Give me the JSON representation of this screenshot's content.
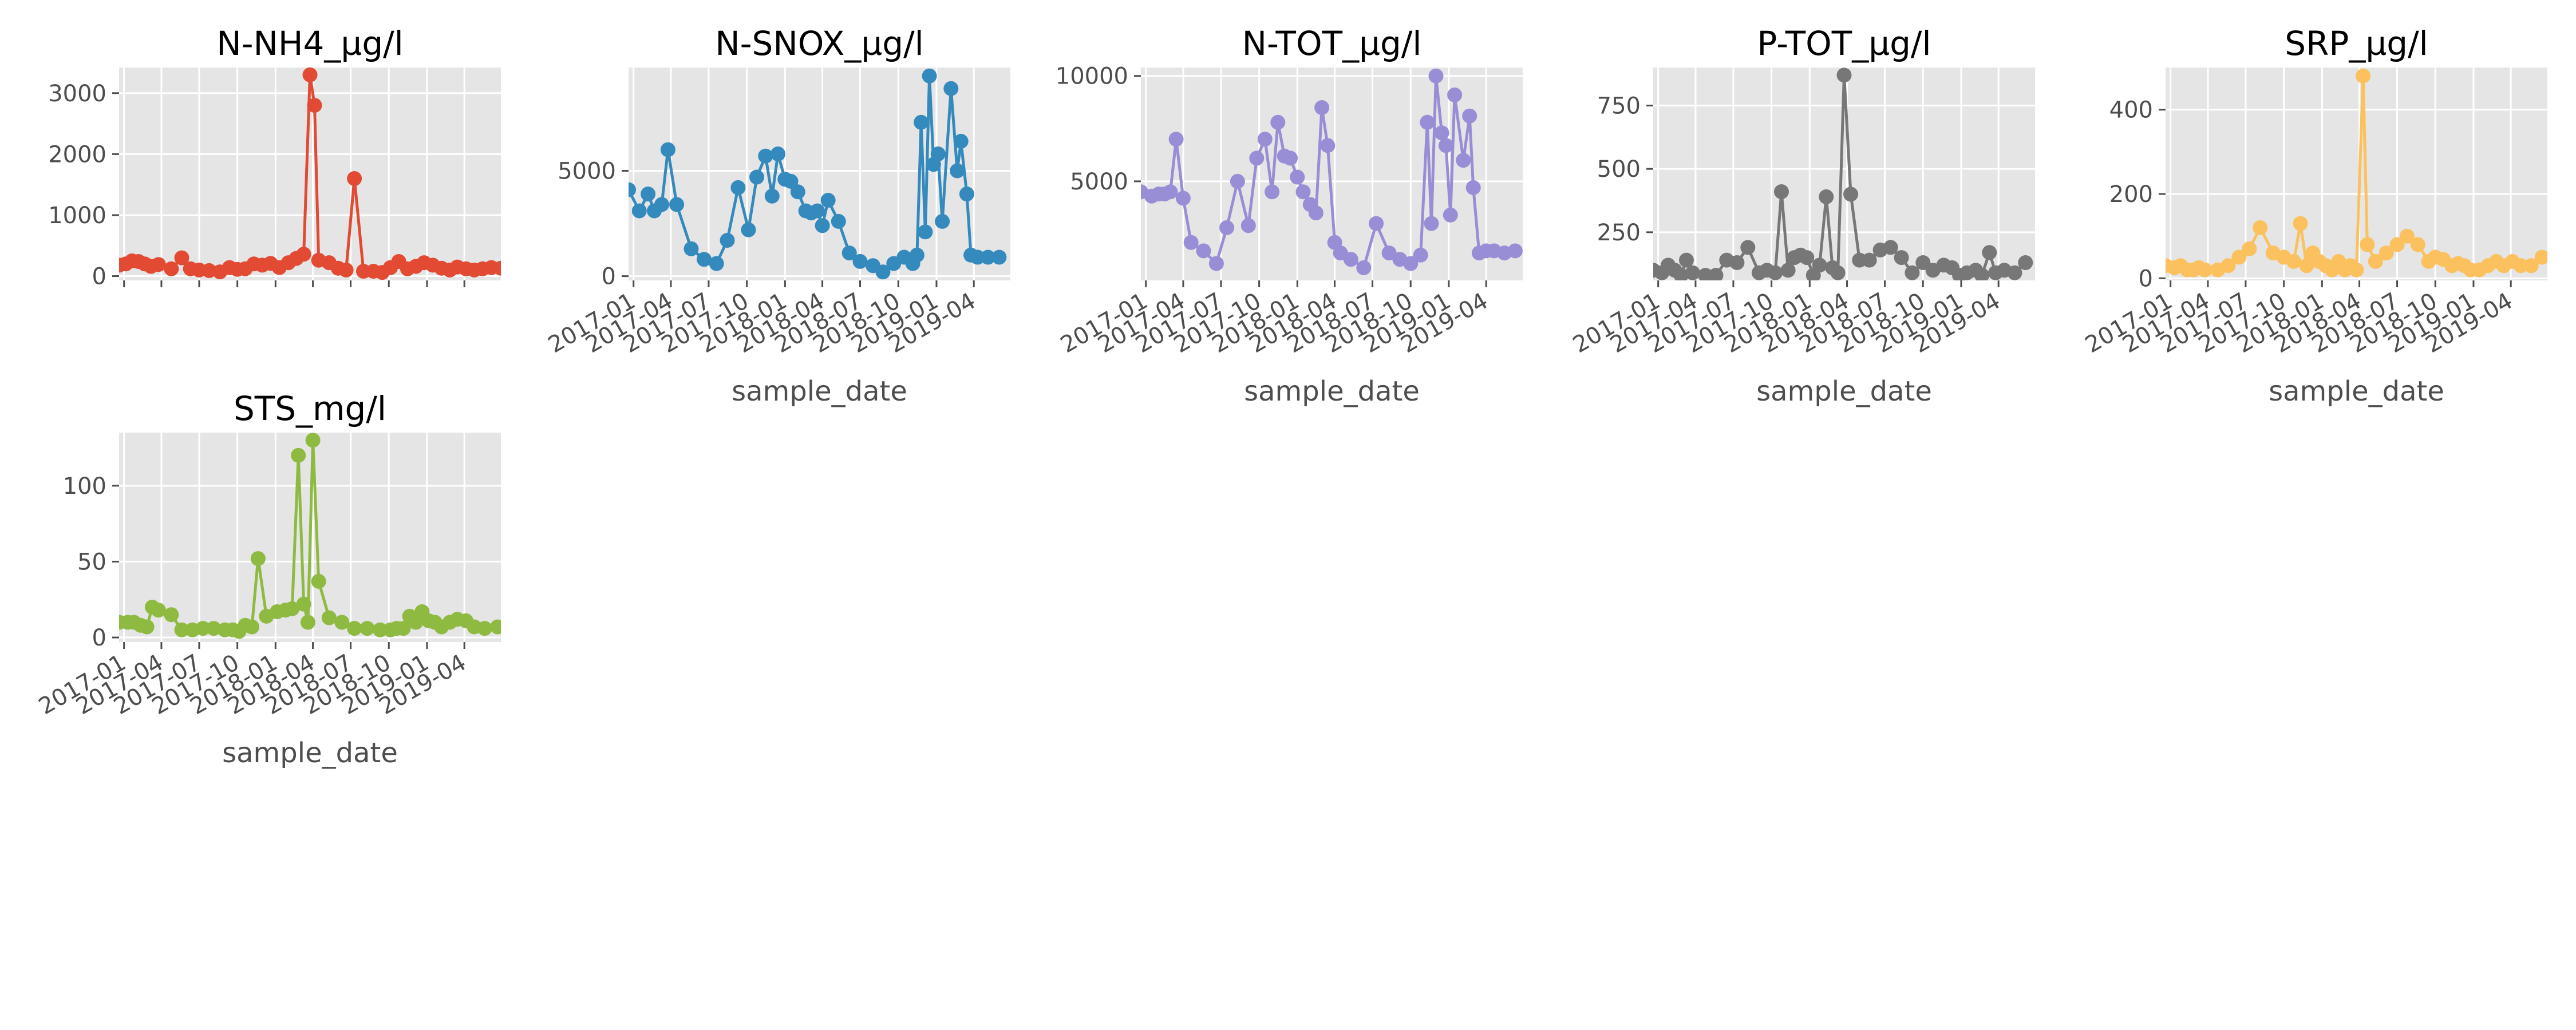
{
  "figure": {
    "style": "ggplot",
    "background": "#ffffff",
    "panel_color": "#e5e5e5",
    "grid_color": "#ffffff",
    "tick_label_color": "#4d4d4d"
  },
  "chart_data": [
    {
      "type": "line",
      "title": "N-NH4_µg/l",
      "xlabel": "",
      "ylabel": "",
      "color": "#e24a33",
      "grid": true,
      "show_xticklabels": false,
      "xlim": [
        "2016-12-20",
        "2019-06-28"
      ],
      "ylim": [
        -70,
        3420
      ],
      "yticks": [
        0,
        1000,
        2000,
        3000
      ],
      "ytick_labels": [
        "0",
        "1000",
        "2000",
        "3000"
      ],
      "xticks": [
        "2017-01-01",
        "2017-04-01",
        "2017-07-01",
        "2017-10-01",
        "2018-01-01",
        "2018-04-01",
        "2018-07-01",
        "2018-10-01",
        "2019-01-01",
        "2019-04-01"
      ],
      "xtick_labels": [],
      "x": [
        "2016-12-20",
        "2017-01-05",
        "2017-01-20",
        "2017-02-05",
        "2017-02-20",
        "2017-03-07",
        "2017-03-25",
        "2017-04-25",
        "2017-05-20",
        "2017-06-10",
        "2017-07-01",
        "2017-07-25",
        "2017-08-20",
        "2017-09-12",
        "2017-10-01",
        "2017-10-20",
        "2017-11-10",
        "2017-11-30",
        "2017-12-20",
        "2018-01-10",
        "2018-02-01",
        "2018-02-20",
        "2018-03-10",
        "2018-03-25",
        "2018-04-05",
        "2018-04-15",
        "2018-05-10",
        "2018-06-01",
        "2018-06-20",
        "2018-07-10",
        "2018-08-01",
        "2018-08-25",
        "2018-09-15",
        "2018-10-05",
        "2018-10-25",
        "2018-11-15",
        "2018-12-05",
        "2018-12-25",
        "2019-01-15",
        "2019-02-05",
        "2019-02-25",
        "2019-03-15",
        "2019-04-05",
        "2019-04-25",
        "2019-05-15",
        "2019-06-05",
        "2019-06-28"
      ],
      "series": [
        {
          "values": [
            180,
            200,
            250,
            240,
            200,
            160,
            190,
            120,
            300,
            120,
            100,
            90,
            70,
            140,
            110,
            120,
            200,
            180,
            210,
            140,
            220,
            290,
            360,
            3300,
            2800,
            260,
            220,
            130,
            100,
            1600,
            80,
            80,
            60,
            140,
            240,
            120,
            160,
            220,
            180,
            130,
            100,
            150,
            120,
            100,
            120,
            140,
            130
          ]
        }
      ]
    },
    {
      "type": "line",
      "title": "N-SNOX_µg/l",
      "xlabel": "sample_date",
      "ylabel": "",
      "color": "#348abd",
      "grid": true,
      "show_xticklabels": true,
      "xlim": [
        "2016-12-20",
        "2019-06-28"
      ],
      "ylim": [
        -200,
        9900
      ],
      "yticks": [
        0,
        5000
      ],
      "ytick_labels": [
        "0",
        "5000"
      ],
      "xticks": [
        "2017-01-01",
        "2017-04-01",
        "2017-07-01",
        "2017-10-01",
        "2018-01-01",
        "2018-04-01",
        "2018-07-01",
        "2018-10-01",
        "2019-01-01",
        "2019-04-01"
      ],
      "xtick_labels": [
        "2017-01",
        "2017-04",
        "2017-07",
        "2017-10",
        "2018-01",
        "2018-04",
        "2018-07",
        "2018-10",
        "2019-01",
        "2019-04"
      ],
      "x": [
        "2016-12-20",
        "2017-01-15",
        "2017-02-05",
        "2017-02-20",
        "2017-03-10",
        "2017-03-25",
        "2017-04-15",
        "2017-05-20",
        "2017-06-20",
        "2017-07-20",
        "2017-08-15",
        "2017-09-10",
        "2017-10-05",
        "2017-10-25",
        "2017-11-15",
        "2017-12-01",
        "2017-12-15",
        "2018-01-01",
        "2018-01-15",
        "2018-02-01",
        "2018-02-20",
        "2018-03-05",
        "2018-03-20",
        "2018-04-01",
        "2018-04-15",
        "2018-05-10",
        "2018-06-05",
        "2018-07-01",
        "2018-08-01",
        "2018-08-25",
        "2018-09-20",
        "2018-10-15",
        "2018-11-05",
        "2018-11-15",
        "2018-11-25",
        "2018-12-05",
        "2018-12-15",
        "2018-12-25",
        "2019-01-05",
        "2019-01-15",
        "2019-02-05",
        "2019-02-20",
        "2019-03-01",
        "2019-03-15",
        "2019-03-25",
        "2019-04-10",
        "2019-05-05",
        "2019-06-01"
      ],
      "series": [
        {
          "values": [
            4100,
            3100,
            3900,
            3100,
            3400,
            6000,
            3400,
            1300,
            800,
            600,
            1700,
            4200,
            2200,
            4700,
            5700,
            3800,
            5800,
            4600,
            4500,
            4000,
            3100,
            3000,
            3100,
            2400,
            3600,
            2600,
            1100,
            700,
            500,
            200,
            600,
            900,
            600,
            1000,
            7300,
            2100,
            9500,
            5300,
            5800,
            2600,
            8900,
            5000,
            6400,
            3900,
            1000,
            900,
            900,
            900
          ]
        }
      ]
    },
    {
      "type": "line",
      "title": "N-TOT_µg/l",
      "xlabel": "sample_date",
      "ylabel": "",
      "color": "#988ed5",
      "grid": true,
      "show_xticklabels": true,
      "xlim": [
        "2016-12-20",
        "2019-06-28"
      ],
      "ylim": [
        300,
        10400
      ],
      "yticks": [
        5000,
        10000
      ],
      "ytick_labels": [
        "5000",
        "10000"
      ],
      "xticks": [
        "2017-01-01",
        "2017-04-01",
        "2017-07-01",
        "2017-10-01",
        "2018-01-01",
        "2018-04-01",
        "2018-07-01",
        "2018-10-01",
        "2019-01-01",
        "2019-04-01"
      ],
      "xtick_labels": [
        "2017-01",
        "2017-04",
        "2017-07",
        "2017-10",
        "2018-01",
        "2018-04",
        "2018-07",
        "2018-10",
        "2019-01",
        "2019-04"
      ],
      "x": [
        "2016-12-20",
        "2017-01-15",
        "2017-02-01",
        "2017-02-15",
        "2017-03-01",
        "2017-03-15",
        "2017-04-01",
        "2017-04-20",
        "2017-05-20",
        "2017-06-20",
        "2017-07-15",
        "2017-08-10",
        "2017-09-05",
        "2017-09-25",
        "2017-10-15",
        "2017-11-01",
        "2017-11-15",
        "2017-12-01",
        "2017-12-15",
        "2018-01-01",
        "2018-01-15",
        "2018-02-01",
        "2018-02-15",
        "2018-03-01",
        "2018-03-15",
        "2018-04-01",
        "2018-04-15",
        "2018-05-10",
        "2018-06-10",
        "2018-07-10",
        "2018-08-10",
        "2018-09-05",
        "2018-10-01",
        "2018-10-25",
        "2018-11-10",
        "2018-11-20",
        "2018-12-01",
        "2018-12-15",
        "2018-12-25",
        "2019-01-05",
        "2019-01-15",
        "2019-02-05",
        "2019-02-20",
        "2019-03-01",
        "2019-03-15",
        "2019-04-01",
        "2019-04-20",
        "2019-05-15",
        "2019-06-10"
      ],
      "series": [
        {
          "values": [
            4500,
            4300,
            4400,
            4400,
            4500,
            7000,
            4200,
            2100,
            1700,
            1100,
            2800,
            5000,
            2900,
            6100,
            7000,
            4500,
            7800,
            6200,
            6100,
            5200,
            4500,
            3900,
            3500,
            8500,
            6700,
            2100,
            1600,
            1300,
            900,
            3000,
            1600,
            1300,
            1100,
            1500,
            7800,
            3000,
            10000,
            7300,
            6700,
            3400,
            9100,
            6000,
            8100,
            4700,
            1600,
            1700,
            1700,
            1600,
            1700
          ]
        }
      ]
    },
    {
      "type": "line",
      "title": "P-TOT_µg/l",
      "xlabel": "sample_date",
      "ylabel": "",
      "color": "#777777",
      "grid": true,
      "show_xticklabels": true,
      "xlim": [
        "2016-12-20",
        "2019-06-28"
      ],
      "ylim": [
        60,
        900
      ],
      "yticks": [
        250,
        500,
        750
      ],
      "ytick_labels": [
        "250",
        "500",
        "750"
      ],
      "xticks": [
        "2017-01-01",
        "2017-04-01",
        "2017-07-01",
        "2017-10-01",
        "2018-01-01",
        "2018-04-01",
        "2018-07-01",
        "2018-10-01",
        "2019-01-01",
        "2019-04-01"
      ],
      "xtick_labels": [
        "2017-01",
        "2017-04",
        "2017-07",
        "2017-10",
        "2018-01",
        "2018-04",
        "2018-07",
        "2018-10",
        "2019-01",
        "2019-04"
      ],
      "x": [
        "2016-12-20",
        "2017-01-10",
        "2017-01-25",
        "2017-02-10",
        "2017-02-25",
        "2017-03-10",
        "2017-03-25",
        "2017-04-25",
        "2017-05-20",
        "2017-06-15",
        "2017-07-10",
        "2017-08-05",
        "2017-09-01",
        "2017-09-20",
        "2017-10-10",
        "2017-10-25",
        "2017-11-10",
        "2017-11-25",
        "2017-12-10",
        "2017-12-25",
        "2018-01-10",
        "2018-01-25",
        "2018-02-10",
        "2018-02-25",
        "2018-03-10",
        "2018-03-25",
        "2018-04-10",
        "2018-05-01",
        "2018-05-25",
        "2018-06-20",
        "2018-07-15",
        "2018-08-10",
        "2018-09-05",
        "2018-10-01",
        "2018-10-25",
        "2018-11-20",
        "2018-12-10",
        "2018-12-28",
        "2019-01-15",
        "2019-02-05",
        "2019-02-20",
        "2019-03-10",
        "2019-03-25",
        "2019-04-15",
        "2019-05-10",
        "2019-06-05"
      ],
      "series": [
        {
          "values": [
            100,
            90,
            120,
            100,
            80,
            140,
            90,
            80,
            80,
            140,
            130,
            190,
            90,
            100,
            90,
            410,
            100,
            150,
            160,
            150,
            80,
            120,
            390,
            110,
            90,
            870,
            400,
            140,
            140,
            180,
            190,
            150,
            90,
            130,
            100,
            120,
            110,
            80,
            90,
            100,
            80,
            170,
            90,
            100,
            90,
            130
          ]
        }
      ]
    },
    {
      "type": "line",
      "title": "SRP_µg/l",
      "xlabel": "sample_date",
      "ylabel": "",
      "color": "#fbc15e",
      "grid": true,
      "show_xticklabels": true,
      "xlim": [
        "2016-12-20",
        "2019-06-28"
      ],
      "ylim": [
        -5,
        500
      ],
      "yticks": [
        0,
        200,
        400
      ],
      "ytick_labels": [
        "0",
        "200",
        "400"
      ],
      "xticks": [
        "2017-01-01",
        "2017-04-01",
        "2017-07-01",
        "2017-10-01",
        "2018-01-01",
        "2018-04-01",
        "2018-07-01",
        "2018-10-01",
        "2019-01-01",
        "2019-04-01"
      ],
      "xtick_labels": [
        "2017-01",
        "2017-04",
        "2017-07",
        "2017-10",
        "2018-01",
        "2018-04",
        "2018-07",
        "2018-10",
        "2019-01",
        "2019-04"
      ],
      "x": [
        "2016-12-20",
        "2017-01-10",
        "2017-01-25",
        "2017-02-10",
        "2017-02-25",
        "2017-03-10",
        "2017-03-25",
        "2017-04-25",
        "2017-05-20",
        "2017-06-15",
        "2017-07-10",
        "2017-08-05",
        "2017-09-05",
        "2017-10-01",
        "2017-10-25",
        "2017-11-10",
        "2017-11-25",
        "2017-12-10",
        "2017-12-25",
        "2018-01-10",
        "2018-01-25",
        "2018-02-10",
        "2018-02-25",
        "2018-03-10",
        "2018-03-25",
        "2018-04-10",
        "2018-04-20",
        "2018-05-10",
        "2018-06-05",
        "2018-07-01",
        "2018-07-25",
        "2018-08-20",
        "2018-09-15",
        "2018-10-01",
        "2018-10-20",
        "2018-11-10",
        "2018-11-25",
        "2018-12-10",
        "2018-12-25",
        "2019-01-15",
        "2019-02-05",
        "2019-02-25",
        "2019-03-15",
        "2019-04-05",
        "2019-04-25",
        "2019-05-20",
        "2019-06-15"
      ],
      "series": [
        {
          "values": [
            30,
            25,
            30,
            20,
            20,
            25,
            20,
            20,
            30,
            50,
            70,
            120,
            60,
            50,
            40,
            130,
            30,
            60,
            40,
            30,
            20,
            40,
            20,
            30,
            20,
            480,
            80,
            40,
            60,
            80,
            100,
            80,
            40,
            50,
            45,
            30,
            35,
            30,
            20,
            20,
            30,
            40,
            30,
            40,
            30,
            30,
            50
          ]
        }
      ]
    },
    {
      "type": "line",
      "title": "STS_mg/l",
      "xlabel": "sample_date",
      "ylabel": "",
      "color": "#8eba42",
      "grid": true,
      "show_xticklabels": true,
      "xlim": [
        "2016-12-20",
        "2019-06-28"
      ],
      "ylim": [
        -3,
        135
      ],
      "yticks": [
        0,
        50,
        100
      ],
      "ytick_labels": [
        "0",
        "50",
        "100"
      ],
      "xticks": [
        "2017-01-01",
        "2017-04-01",
        "2017-07-01",
        "2017-10-01",
        "2018-01-01",
        "2018-04-01",
        "2018-07-01",
        "2018-10-01",
        "2019-01-01",
        "2019-04-01"
      ],
      "xtick_labels": [
        "2017-01",
        "2017-04",
        "2017-07",
        "2017-10",
        "2018-01",
        "2018-04",
        "2018-07",
        "2018-10",
        "2019-01",
        "2019-04"
      ],
      "x": [
        "2016-12-20",
        "2017-01-10",
        "2017-01-25",
        "2017-02-10",
        "2017-02-25",
        "2017-03-10",
        "2017-03-25",
        "2017-04-25",
        "2017-05-20",
        "2017-06-15",
        "2017-07-10",
        "2017-08-05",
        "2017-09-01",
        "2017-09-20",
        "2017-10-05",
        "2017-10-20",
        "2017-11-05",
        "2017-11-20",
        "2017-12-10",
        "2018-01-05",
        "2018-01-25",
        "2018-02-10",
        "2018-02-25",
        "2018-03-10",
        "2018-03-20",
        "2018-04-01",
        "2018-04-15",
        "2018-05-10",
        "2018-06-10",
        "2018-07-10",
        "2018-08-10",
        "2018-09-10",
        "2018-10-05",
        "2018-10-20",
        "2018-11-05",
        "2018-11-20",
        "2018-12-05",
        "2018-12-20",
        "2019-01-05",
        "2019-01-20",
        "2019-02-05",
        "2019-02-25",
        "2019-03-15",
        "2019-04-05",
        "2019-04-25",
        "2019-05-20",
        "2019-06-20"
      ],
      "series": [
        {
          "values": [
            10,
            10,
            10,
            8,
            7,
            20,
            18,
            15,
            5,
            5,
            6,
            6,
            5,
            5,
            4,
            8,
            7,
            52,
            14,
            17,
            18,
            19,
            120,
            22,
            10,
            130,
            37,
            13,
            10,
            6,
            6,
            5,
            5,
            6,
            6,
            14,
            10,
            17,
            11,
            10,
            7,
            10,
            12,
            11,
            7,
            6,
            7
          ]
        }
      ]
    }
  ]
}
